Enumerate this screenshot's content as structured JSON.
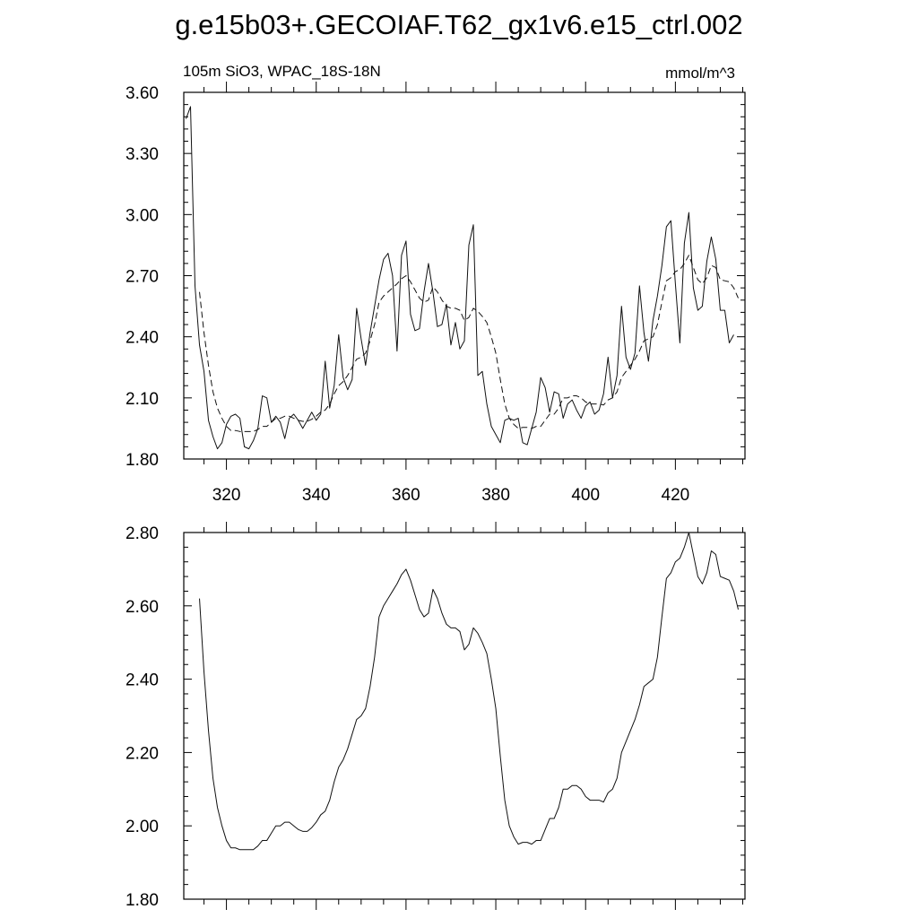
{
  "title": "g.e15b03+.GECOIAF.T62_gx1v6.e15_ctrl.002",
  "chart_data": [
    {
      "type": "line",
      "left_label": "105m SiO3, WPAC_18S-18N",
      "right_label": "mmol/m^3",
      "xlim": [
        310.5,
        435.5
      ],
      "ylim": [
        1.8,
        3.6
      ],
      "x_ticks": [
        320,
        340,
        360,
        380,
        400,
        420
      ],
      "x_tick_labels": [
        "320",
        "340",
        "360",
        "380",
        "400",
        "420"
      ],
      "y_ticks": [
        1.8,
        2.1,
        2.4,
        2.7,
        3.0,
        3.3,
        3.6
      ],
      "y_tick_labels": [
        "1.80",
        "2.10",
        "2.40",
        "2.70",
        "3.00",
        "3.30",
        "3.60"
      ],
      "series": [
        {
          "style": "solid",
          "x_start": 311,
          "x_step": 1,
          "values": [
            3.47,
            3.53,
            2.65,
            2.36,
            2.23,
            1.99,
            1.91,
            1.85,
            1.88,
            1.97,
            2.01,
            2.02,
            2.0,
            1.86,
            1.85,
            1.89,
            1.95,
            2.11,
            2.1,
            1.98,
            2.01,
            1.98,
            1.9,
            2.0,
            2.02,
            1.99,
            1.95,
            1.99,
            2.03,
            1.99,
            2.02,
            2.28,
            2.05,
            2.16,
            2.41,
            2.2,
            2.14,
            2.19,
            2.54,
            2.39,
            2.26,
            2.42,
            2.55,
            2.68,
            2.78,
            2.81,
            2.7,
            2.33,
            2.8,
            2.87,
            2.51,
            2.43,
            2.44,
            2.62,
            2.76,
            2.62,
            2.45,
            2.46,
            2.56,
            2.36,
            2.47,
            2.34,
            2.38,
            2.85,
            2.95,
            2.21,
            2.23,
            2.07,
            1.96,
            1.92,
            1.88,
            1.99,
            2.0,
            1.99,
            2.0,
            1.88,
            1.87,
            1.95,
            2.03,
            2.2,
            2.15,
            2.03,
            2.13,
            2.12,
            2.0,
            2.07,
            2.09,
            2.04,
            2.0,
            2.06,
            2.08,
            2.02,
            2.04,
            2.12,
            2.3,
            2.1,
            2.21,
            2.55,
            2.3,
            2.24,
            2.32,
            2.65,
            2.42,
            2.28,
            2.48,
            2.6,
            2.75,
            2.94,
            2.97,
            2.66,
            2.37,
            2.86,
            3.01,
            2.64,
            2.53,
            2.55,
            2.77,
            2.89,
            2.78,
            2.53,
            2.53,
            2.37,
            2.41
          ]
        },
        {
          "style": "dashed",
          "x_start": 314,
          "x_step": 1,
          "values": [
            2.62,
            2.42,
            2.26,
            2.13,
            2.05,
            2.0,
            1.96,
            1.94,
            1.94,
            1.935,
            1.935,
            1.935,
            1.935,
            1.945,
            1.96,
            1.96,
            1.98,
            2.0,
            2.0,
            2.01,
            2.01,
            2.0,
            1.99,
            1.985,
            1.985,
            1.995,
            2.01,
            2.03,
            2.04,
            2.07,
            2.12,
            2.16,
            2.18,
            2.21,
            2.25,
            2.29,
            2.3,
            2.32,
            2.38,
            2.46,
            2.57,
            2.6,
            2.62,
            2.64,
            2.66,
            2.685,
            2.7,
            2.67,
            2.63,
            2.59,
            2.57,
            2.58,
            2.645,
            2.62,
            2.58,
            2.55,
            2.54,
            2.54,
            2.53,
            2.48,
            2.495,
            2.54,
            2.525,
            2.5,
            2.47,
            2.4,
            2.32,
            2.19,
            2.07,
            2.0,
            1.97,
            1.95,
            1.955,
            1.955,
            1.95,
            1.96,
            1.96,
            1.99,
            2.02,
            2.02,
            2.05,
            2.1,
            2.1,
            2.11,
            2.11,
            2.1,
            2.08,
            2.07,
            2.07,
            2.07,
            2.065,
            2.09,
            2.1,
            2.13,
            2.2,
            2.23,
            2.26,
            2.29,
            2.33,
            2.38,
            2.39,
            2.4,
            2.46,
            2.57,
            2.675,
            2.69,
            2.72,
            2.73,
            2.76,
            2.8,
            2.74,
            2.68,
            2.66,
            2.69,
            2.75,
            2.74,
            2.68,
            2.675,
            2.67,
            2.64,
            2.59
          ]
        }
      ]
    },
    {
      "type": "line",
      "xlim": [
        310.5,
        435.5
      ],
      "ylim": [
        1.8,
        2.8
      ],
      "x_ticks": [
        320,
        340,
        360,
        380,
        400,
        420
      ],
      "y_ticks": [
        1.8,
        2.0,
        2.2,
        2.4,
        2.6,
        2.8
      ],
      "y_tick_labels": [
        "1.80",
        "2.00",
        "2.20",
        "2.40",
        "2.60",
        "2.80"
      ],
      "series": [
        {
          "style": "solid",
          "x_start": 314,
          "x_step": 1,
          "values": [
            2.62,
            2.42,
            2.26,
            2.13,
            2.05,
            2.0,
            1.96,
            1.94,
            1.94,
            1.935,
            1.935,
            1.935,
            1.935,
            1.945,
            1.96,
            1.96,
            1.98,
            2.0,
            2.0,
            2.01,
            2.01,
            2.0,
            1.99,
            1.985,
            1.985,
            1.995,
            2.01,
            2.03,
            2.04,
            2.07,
            2.12,
            2.16,
            2.18,
            2.21,
            2.25,
            2.29,
            2.3,
            2.32,
            2.38,
            2.46,
            2.57,
            2.6,
            2.62,
            2.64,
            2.66,
            2.685,
            2.7,
            2.67,
            2.63,
            2.59,
            2.57,
            2.58,
            2.645,
            2.62,
            2.58,
            2.55,
            2.54,
            2.54,
            2.53,
            2.48,
            2.495,
            2.54,
            2.525,
            2.5,
            2.47,
            2.4,
            2.32,
            2.19,
            2.07,
            2.0,
            1.97,
            1.95,
            1.955,
            1.955,
            1.95,
            1.96,
            1.96,
            1.99,
            2.02,
            2.02,
            2.05,
            2.1,
            2.1,
            2.11,
            2.11,
            2.1,
            2.08,
            2.07,
            2.07,
            2.07,
            2.065,
            2.09,
            2.1,
            2.13,
            2.2,
            2.23,
            2.26,
            2.29,
            2.33,
            2.38,
            2.39,
            2.4,
            2.46,
            2.57,
            2.675,
            2.69,
            2.72,
            2.73,
            2.76,
            2.8,
            2.74,
            2.68,
            2.66,
            2.69,
            2.75,
            2.74,
            2.68,
            2.675,
            2.67,
            2.64,
            2.59
          ]
        }
      ]
    }
  ]
}
